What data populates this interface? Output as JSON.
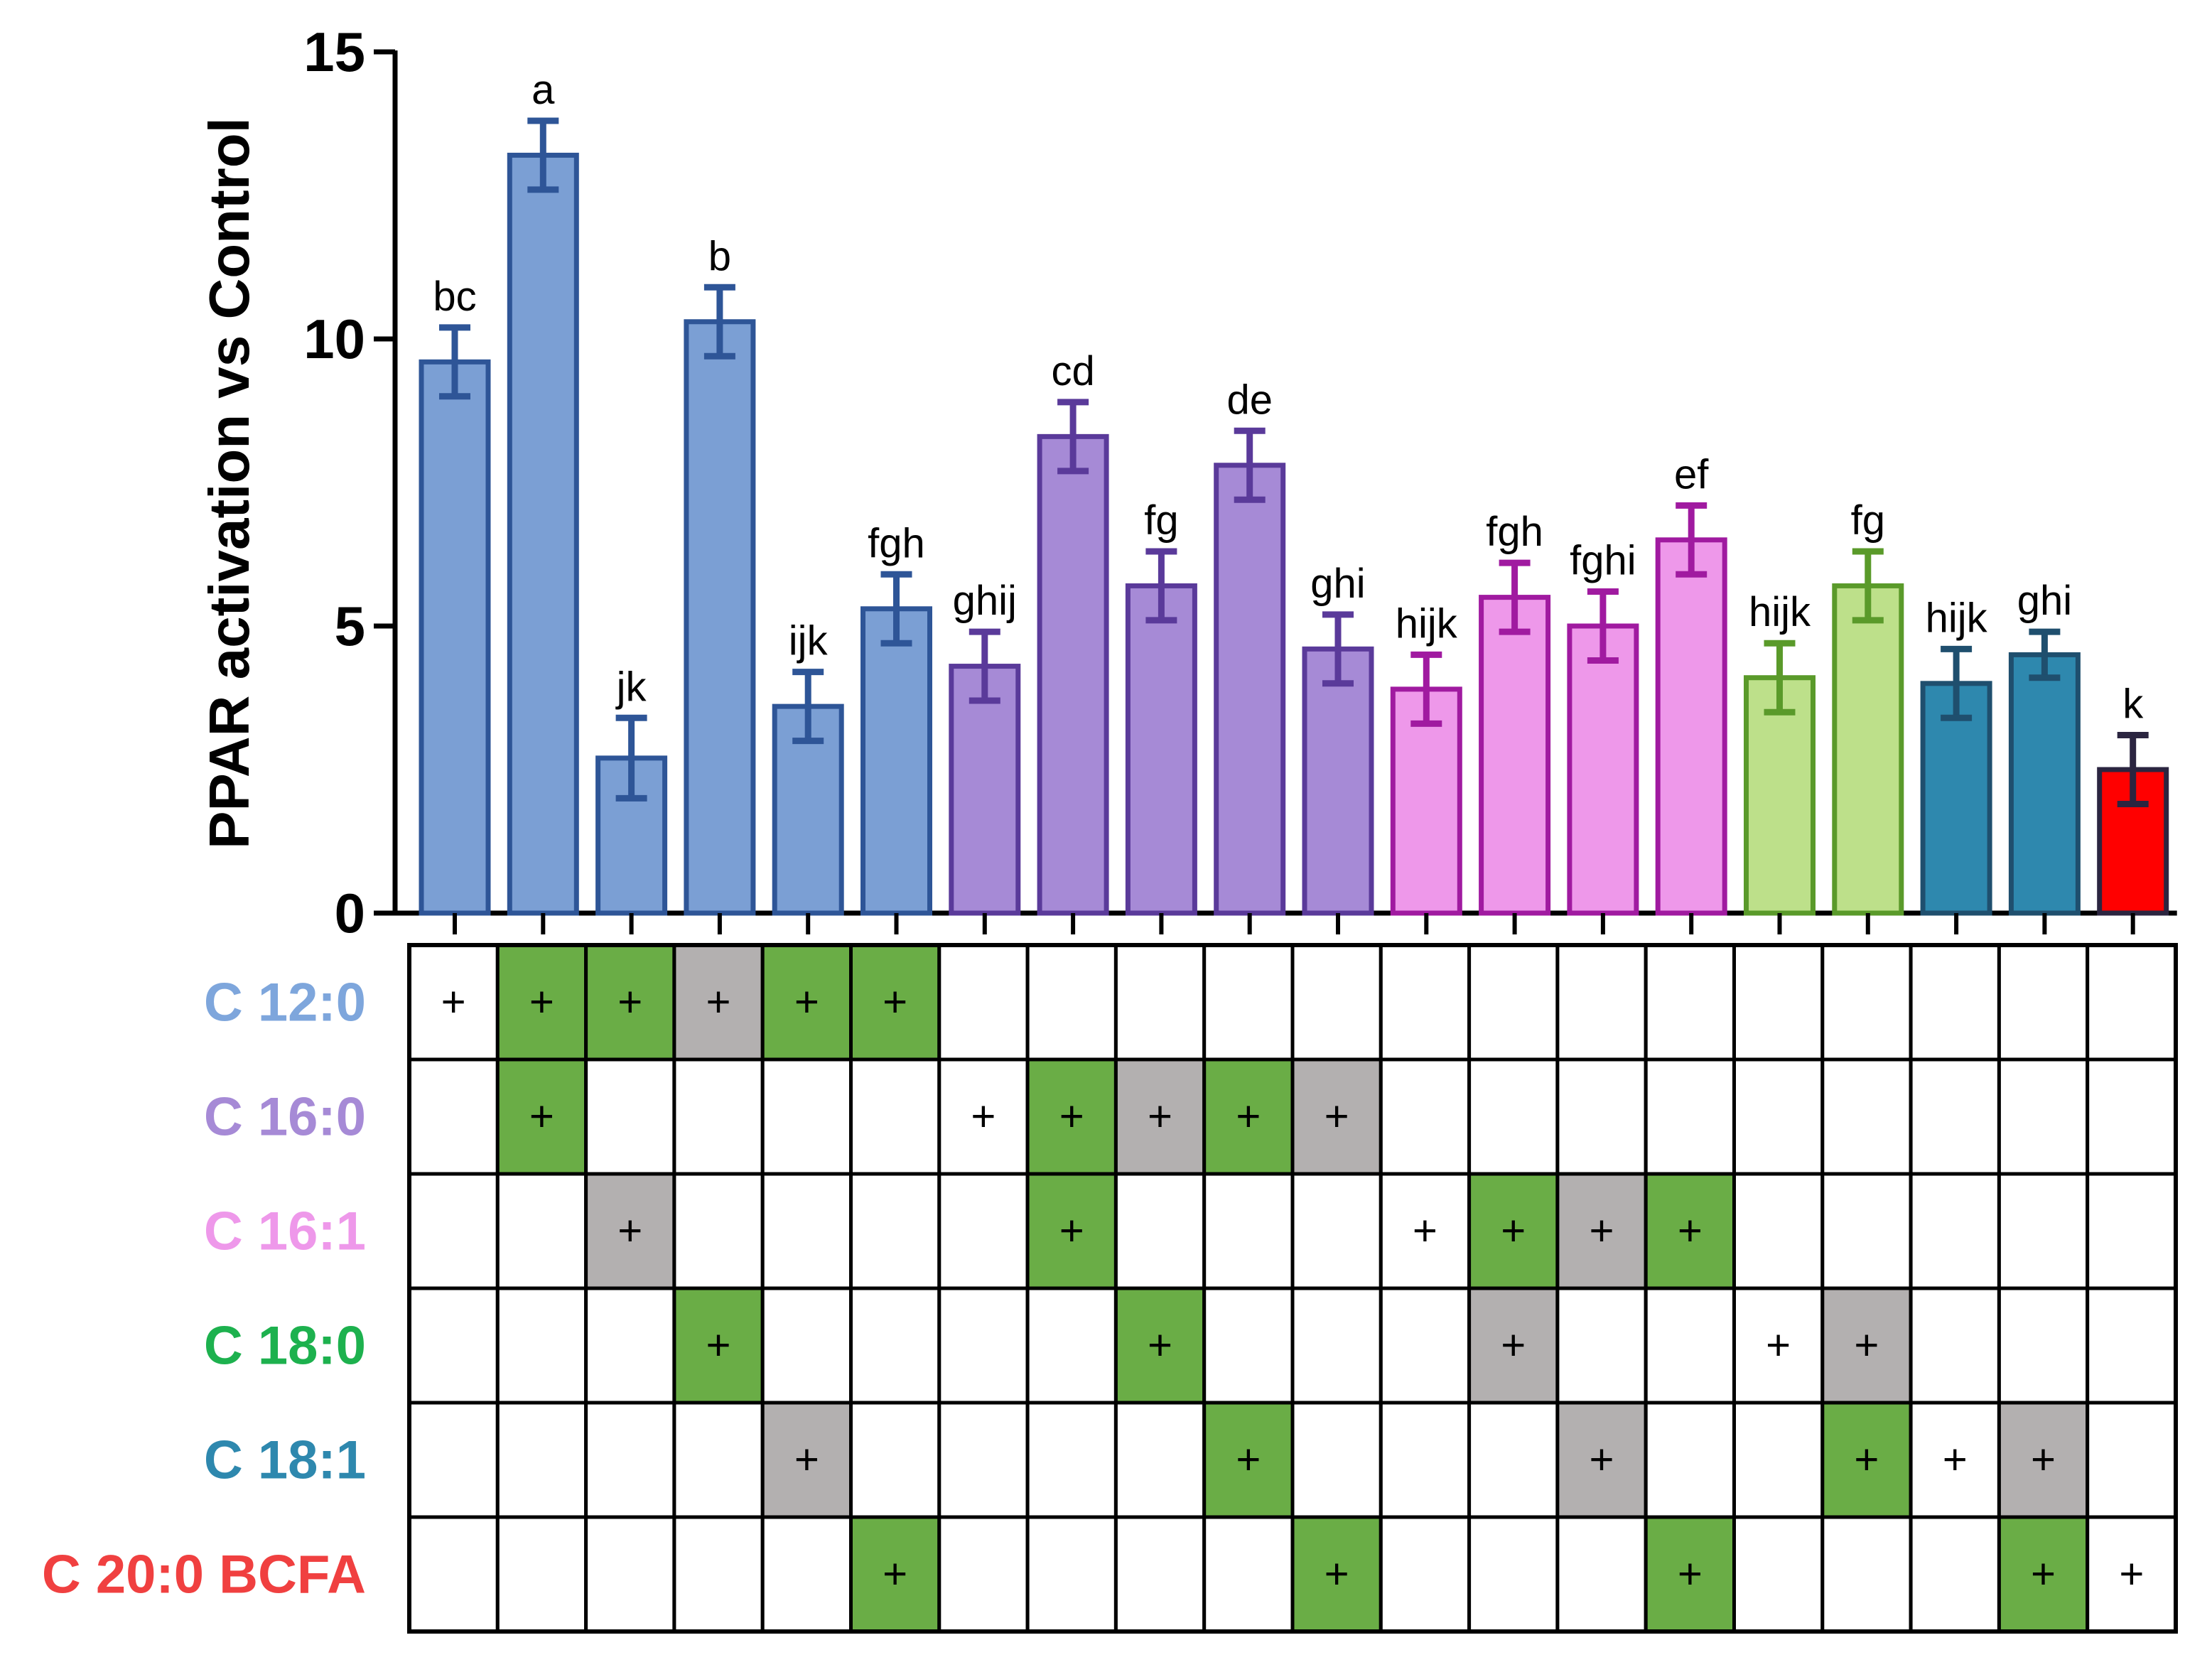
{
  "chart_data": {
    "type": "bar",
    "ylabel": "PPAR activation vs Control",
    "ylim": [
      0,
      15
    ],
    "yticks": [
      "0",
      "5",
      "10",
      "15"
    ],
    "grid": false,
    "bars": [
      {
        "value": 9.6,
        "error": 0.6,
        "letter": "bc",
        "group": "C 12:0"
      },
      {
        "value": 13.2,
        "error": 0.6,
        "letter": "a",
        "group": "C 12:0"
      },
      {
        "value": 2.7,
        "error": 0.7,
        "letter": "jk",
        "group": "C 12:0"
      },
      {
        "value": 10.3,
        "error": 0.6,
        "letter": "b",
        "group": "C 12:0"
      },
      {
        "value": 3.6,
        "error": 0.6,
        "letter": "ijk",
        "group": "C 12:0"
      },
      {
        "value": 5.3,
        "error": 0.6,
        "letter": "fgh",
        "group": "C 12:0"
      },
      {
        "value": 4.3,
        "error": 0.6,
        "letter": "ghij",
        "group": "C 16:0"
      },
      {
        "value": 8.3,
        "error": 0.6,
        "letter": "cd",
        "group": "C 16:0"
      },
      {
        "value": 5.7,
        "error": 0.6,
        "letter": "fg",
        "group": "C 16:0"
      },
      {
        "value": 7.8,
        "error": 0.6,
        "letter": "de",
        "group": "C 16:0"
      },
      {
        "value": 4.6,
        "error": 0.6,
        "letter": "ghi",
        "group": "C 16:0"
      },
      {
        "value": 3.9,
        "error": 0.6,
        "letter": "hijk",
        "group": "C 16:1"
      },
      {
        "value": 5.5,
        "error": 0.6,
        "letter": "fgh",
        "group": "C 16:1"
      },
      {
        "value": 5.0,
        "error": 0.6,
        "letter": "fghi",
        "group": "C 16:1"
      },
      {
        "value": 6.5,
        "error": 0.6,
        "letter": "ef",
        "group": "C 16:1"
      },
      {
        "value": 4.1,
        "error": 0.6,
        "letter": "hijk",
        "group": "C 18:0"
      },
      {
        "value": 5.7,
        "error": 0.6,
        "letter": "fg",
        "group": "C 18:0"
      },
      {
        "value": 4.0,
        "error": 0.6,
        "letter": "hijk",
        "group": "C 18:1"
      },
      {
        "value": 4.5,
        "error": 0.4,
        "letter": "ghi",
        "group": "C 18:1"
      },
      {
        "value": 2.5,
        "error": 0.6,
        "letter": "k",
        "group": "C 20:0 BCFA"
      }
    ],
    "groups": {
      "C 12:0": {
        "fill": "#7b9fd4",
        "stroke": "#2e5597"
      },
      "C 16:0": {
        "fill": "#a68ad6",
        "stroke": "#5a3a9a"
      },
      "C 16:1": {
        "fill": "#ee98ea",
        "stroke": "#a01aa0"
      },
      "C 18:0": {
        "fill": "#bde08a",
        "stroke": "#5a9a2a"
      },
      "C 18:1": {
        "fill": "#2e88ae",
        "stroke": "#1f4f6e"
      },
      "C 20:0 BCFA": {
        "fill": "#ff0000",
        "stroke": "#2b2540"
      }
    },
    "matrix": {
      "symbol": "+",
      "rows": [
        {
          "label": "C 12:0",
          "color": "#7ea6dc",
          "cells": [
            "+",
            "G",
            "G",
            "g",
            "G",
            "G",
            "",
            "",
            "",
            "",
            "",
            "",
            "",
            "",
            "",
            "",
            "",
            "",
            "",
            ""
          ]
        },
        {
          "label": "C 16:0",
          "color": "#a68ad6",
          "cells": [
            "",
            "G",
            "",
            "",
            "",
            "",
            "+",
            "G",
            "g",
            "G",
            "g",
            "",
            "",
            "",
            "",
            "",
            "",
            "",
            "",
            ""
          ]
        },
        {
          "label": "C 16:1",
          "color": "#ee98ea",
          "cells": [
            "",
            "",
            "g",
            "",
            "",
            "",
            "",
            "G",
            "",
            "",
            "",
            "+",
            "G",
            "g",
            "G",
            "",
            "",
            "",
            "",
            ""
          ]
        },
        {
          "label": "C 18:0",
          "color": "#1db14e",
          "cells": [
            "",
            "",
            "",
            "G",
            "",
            "",
            "",
            "",
            "G",
            "",
            "",
            "",
            "g",
            "",
            "",
            "+",
            "g",
            "",
            "",
            ""
          ]
        },
        {
          "label": "C 18:1",
          "color": "#2e88ae",
          "cells": [
            "",
            "",
            "",
            "",
            "g",
            "",
            "",
            "",
            "",
            "G",
            "",
            "",
            "",
            "g",
            "",
            "",
            "G",
            "+",
            "g",
            ""
          ]
        },
        {
          "label": "C 20:0 BCFA",
          "color": "#f04040",
          "cells": [
            "",
            "",
            "",
            "",
            "",
            "G",
            "",
            "",
            "",
            "",
            "G",
            "",
            "",
            "",
            "G",
            "",
            "",
            "",
            "G",
            "+"
          ]
        }
      ],
      "cell_colors": {
        "G": "#6aad46",
        "g": "#b3b0b0",
        "plain": "#ffffff"
      }
    }
  }
}
